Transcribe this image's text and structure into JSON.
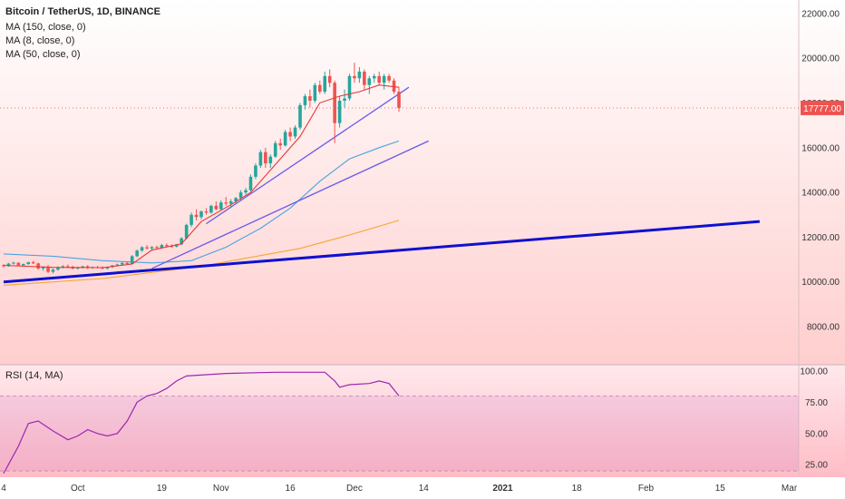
{
  "header": {
    "symbol": "Bitcoin / TetherUS, 1D, BINANCE",
    "indicators": [
      "MA (150, close, 0)",
      "MA (8, close, 0)",
      "MA (50, close, 0)"
    ]
  },
  "rsi_label": "RSI (14, MA)",
  "last_price_label": "17777.00",
  "colors": {
    "up": "#26a69a",
    "down": "#ef5350",
    "ma150": "#f7a531",
    "ma8": "#e53935",
    "ma50": "#4aa3df",
    "trend_bold": "#1010d0",
    "trend_thin": "#6a5ae8",
    "rsi_line": "#9c27b0",
    "bg_top": "#ffffff",
    "bg_bottom": "#ffbdbd"
  },
  "chart_data": {
    "type": "candlestick",
    "price_axis": {
      "ylim": [
        6300,
        22600
      ],
      "ticks": [
        "22000.00",
        "20000.00",
        "18000.00",
        "16000.00",
        "14000.00",
        "12000.00",
        "10000.00",
        "8000.00"
      ]
    },
    "rsi_axis": {
      "ylim": [
        15,
        105
      ],
      "ticks": [
        "100.00",
        "75.00",
        "50.00",
        "25.00"
      ],
      "band": [
        20,
        80
      ]
    },
    "x_axis": {
      "ticks": [
        "4",
        "Oct",
        "19",
        "Nov",
        "16",
        "Dec",
        "14",
        "2021",
        "18",
        "Feb",
        "15",
        "Mar"
      ]
    },
    "candles": [
      [
        10750,
        10800,
        10650,
        10700
      ],
      [
        10700,
        10850,
        10680,
        10820
      ],
      [
        10820,
        10900,
        10780,
        10860
      ],
      [
        10860,
        10880,
        10700,
        10740
      ],
      [
        10740,
        10820,
        10700,
        10800
      ],
      [
        10800,
        10900,
        10760,
        10880
      ],
      [
        10880,
        10950,
        10800,
        10830
      ],
      [
        10830,
        10860,
        10550,
        10600
      ],
      [
        10600,
        10700,
        10500,
        10680
      ],
      [
        10680,
        10760,
        10400,
        10450
      ],
      [
        10450,
        10600,
        10380,
        10550
      ],
      [
        10550,
        10700,
        10500,
        10650
      ],
      [
        10650,
        10750,
        10600,
        10700
      ],
      [
        10700,
        10780,
        10640,
        10680
      ],
      [
        10680,
        10720,
        10560,
        10600
      ],
      [
        10600,
        10680,
        10550,
        10640
      ],
      [
        10640,
        10720,
        10600,
        10700
      ],
      [
        10700,
        10750,
        10580,
        10620
      ],
      [
        10620,
        10700,
        10580,
        10660
      ],
      [
        10660,
        10720,
        10600,
        10640
      ],
      [
        10640,
        10700,
        10560,
        10600
      ],
      [
        10600,
        10680,
        10560,
        10660
      ],
      [
        10660,
        10760,
        10620,
        10740
      ],
      [
        10740,
        10820,
        10700,
        10780
      ],
      [
        10780,
        10880,
        10740,
        10850
      ],
      [
        10850,
        10900,
        10760,
        10800
      ],
      [
        10800,
        11200,
        10780,
        11150
      ],
      [
        11150,
        11450,
        11100,
        11400
      ],
      [
        11400,
        11600,
        11350,
        11550
      ],
      [
        11550,
        11650,
        11450,
        11500
      ],
      [
        11500,
        11600,
        11400,
        11560
      ],
      [
        11560,
        11620,
        11500,
        11530
      ],
      [
        11530,
        11700,
        11480,
        11650
      ],
      [
        11650,
        11720,
        11550,
        11600
      ],
      [
        11600,
        11680,
        11520,
        11580
      ],
      [
        11580,
        11700,
        11540,
        11680
      ],
      [
        11680,
        12000,
        11650,
        11950
      ],
      [
        11950,
        12600,
        11900,
        12550
      ],
      [
        12550,
        13100,
        12450,
        13000
      ],
      [
        13000,
        13250,
        12750,
        12900
      ],
      [
        12900,
        13200,
        12800,
        13150
      ],
      [
        13150,
        13300,
        13000,
        13100
      ],
      [
        13100,
        13450,
        13050,
        13400
      ],
      [
        13400,
        13600,
        13200,
        13250
      ],
      [
        13250,
        13650,
        13200,
        13550
      ],
      [
        13550,
        13800,
        13400,
        13500
      ],
      [
        13500,
        13700,
        13300,
        13600
      ],
      [
        13600,
        13800,
        13500,
        13750
      ],
      [
        13750,
        14100,
        13650,
        14000
      ],
      [
        14000,
        14200,
        13900,
        14100
      ],
      [
        14100,
        14800,
        14050,
        14700
      ],
      [
        14700,
        15300,
        14600,
        15200
      ],
      [
        15200,
        15900,
        15100,
        15800
      ],
      [
        15800,
        16000,
        15100,
        15300
      ],
      [
        15300,
        15700,
        15100,
        15600
      ],
      [
        15600,
        16300,
        15550,
        16200
      ],
      [
        16200,
        16400,
        15900,
        16100
      ],
      [
        16100,
        16800,
        16050,
        16700
      ],
      [
        16700,
        16900,
        16300,
        16500
      ],
      [
        16500,
        17000,
        16400,
        16900
      ],
      [
        16900,
        18000,
        16800,
        17900
      ],
      [
        17900,
        18400,
        17700,
        18300
      ],
      [
        18300,
        18600,
        17800,
        18100
      ],
      [
        18100,
        18900,
        18000,
        18800
      ],
      [
        18800,
        19000,
        18400,
        18500
      ],
      [
        18500,
        19400,
        18400,
        19200
      ],
      [
        19200,
        19500,
        18700,
        18900
      ],
      [
        18900,
        19000,
        16200,
        17100
      ],
      [
        17100,
        18300,
        16900,
        18100
      ],
      [
        18100,
        18600,
        17800,
        18200
      ],
      [
        18200,
        19300,
        18100,
        19200
      ],
      [
        19200,
        19800,
        18900,
        19100
      ],
      [
        19100,
        19600,
        18900,
        19400
      ],
      [
        19400,
        19500,
        18600,
        18800
      ],
      [
        18800,
        19200,
        18400,
        19100
      ],
      [
        19100,
        19300,
        18900,
        19200
      ],
      [
        19200,
        19400,
        18800,
        18900
      ],
      [
        18900,
        19300,
        18600,
        19200
      ],
      [
        19200,
        19300,
        18900,
        19000
      ],
      [
        19000,
        19100,
        18400,
        18500
      ],
      [
        18500,
        18700,
        17600,
        17777
      ]
    ],
    "ma8": [
      [
        0,
        10740
      ],
      [
        10,
        10650
      ],
      [
        20,
        10640
      ],
      [
        26,
        10800
      ],
      [
        30,
        11420
      ],
      [
        36,
        11700
      ],
      [
        40,
        12700
      ],
      [
        46,
        13450
      ],
      [
        50,
        14000
      ],
      [
        56,
        15500
      ],
      [
        60,
        16500
      ],
      [
        64,
        18000
      ],
      [
        68,
        18300
      ],
      [
        72,
        18500
      ],
      [
        76,
        18800
      ],
      [
        80,
        18700
      ]
    ],
    "ma50": [
      [
        0,
        11250
      ],
      [
        10,
        11150
      ],
      [
        20,
        10950
      ],
      [
        30,
        10850
      ],
      [
        38,
        10950
      ],
      [
        45,
        11550
      ],
      [
        52,
        12400
      ],
      [
        58,
        13300
      ],
      [
        64,
        14500
      ],
      [
        70,
        15500
      ],
      [
        76,
        16000
      ],
      [
        80,
        16300
      ]
    ],
    "ma150": [
      [
        0,
        9850
      ],
      [
        20,
        10150
      ],
      [
        40,
        10700
      ],
      [
        60,
        11500
      ],
      [
        70,
        12100
      ],
      [
        80,
        12750
      ]
    ],
    "trendlines": [
      {
        "from": [
          0,
          10000
        ],
        "to": [
          153,
          12700
        ],
        "style": "bold"
      },
      {
        "from": [
          30,
          10600
        ],
        "to": [
          86,
          16300
        ],
        "style": "thin"
      },
      {
        "from": [
          41,
          12600
        ],
        "to": [
          82,
          18700
        ],
        "style": "thin"
      }
    ],
    "rsi": [
      [
        0,
        18
      ],
      [
        3,
        40
      ],
      [
        5,
        58
      ],
      [
        7,
        60
      ],
      [
        10,
        52
      ],
      [
        13,
        45
      ],
      [
        15,
        48
      ],
      [
        17,
        53
      ],
      [
        19,
        50
      ],
      [
        21,
        48
      ],
      [
        23,
        50
      ],
      [
        25,
        60
      ],
      [
        27,
        75
      ],
      [
        29,
        80
      ],
      [
        31,
        82
      ],
      [
        33,
        86
      ],
      [
        35,
        92
      ],
      [
        37,
        96
      ],
      [
        41,
        97
      ],
      [
        45,
        98
      ],
      [
        55,
        99
      ],
      [
        65,
        99
      ],
      [
        67,
        92
      ],
      [
        68,
        87
      ],
      [
        70,
        89
      ],
      [
        74,
        90
      ],
      [
        76,
        92
      ],
      [
        78,
        90
      ],
      [
        80,
        80
      ]
    ]
  }
}
